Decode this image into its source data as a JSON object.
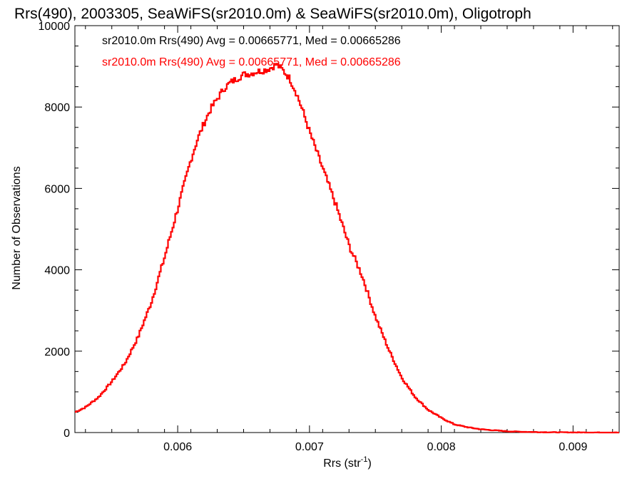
{
  "chart_data": {
    "type": "line",
    "title": "Rrs(490), 2003305, SeaWiFS(sr2010.0m) & SeaWiFS(sr2010.0m), Oligotroph",
    "xlabel": "Rrs (str",
    "xlabel_sup": "-1",
    "xlabel_tail": ")",
    "ylabel": "Number of Observations",
    "xlim": [
      0.00522,
      0.00935
    ],
    "ylim": [
      0,
      10000
    ],
    "xticks": [
      0.006,
      0.007,
      0.008,
      0.009
    ],
    "xtick_labels": [
      "0.006",
      "0.007",
      "0.008",
      "0.009"
    ],
    "yticks": [
      0,
      2000,
      4000,
      6000,
      8000,
      10000
    ],
    "ytick_labels": [
      "0",
      "2000",
      "4000",
      "6000",
      "8000",
      "10000"
    ],
    "grid": false,
    "legend_position": "top-left",
    "annotations": [
      {
        "text": "sr2010.0m Rrs(490) Avg = 0.00665771, Med = 0.00665286",
        "color": "#000000"
      },
      {
        "text": "sr2010.0m Rrs(490) Avg = 0.00665771, Med = 0.00665286",
        "color": "#ff0000"
      }
    ],
    "series": [
      {
        "color": "#ff0000",
        "x": [
          0.00522,
          0.0053,
          0.0054,
          0.0055,
          0.0056,
          0.0057,
          0.0058,
          0.0059,
          0.006,
          0.0061,
          0.00615,
          0.0062,
          0.00625,
          0.0063,
          0.00635,
          0.0064,
          0.00645,
          0.0065,
          0.00655,
          0.0066,
          0.00665,
          0.0067,
          0.00675,
          0.0068,
          0.00685,
          0.0069,
          0.00695,
          0.007,
          0.00705,
          0.0071,
          0.00715,
          0.0072,
          0.00725,
          0.0073,
          0.0074,
          0.0075,
          0.0076,
          0.0077,
          0.0078,
          0.0079,
          0.008,
          0.0081,
          0.0082,
          0.0083,
          0.0084,
          0.0085,
          0.0086,
          0.0087,
          0.0088,
          0.0089,
          0.009,
          0.0091,
          0.0092,
          0.00935
        ],
        "y": [
          500,
          620,
          870,
          1250,
          1700,
          2350,
          3200,
          4300,
          5500,
          6700,
          7200,
          7600,
          7950,
          8200,
          8450,
          8600,
          8700,
          8800,
          8820,
          8870,
          8900,
          8950,
          9050,
          8900,
          8700,
          8350,
          7900,
          7400,
          6950,
          6500,
          6050,
          5600,
          5100,
          4600,
          3850,
          2850,
          2050,
          1350,
          880,
          560,
          360,
          200,
          130,
          80,
          55,
          30,
          20,
          13,
          8,
          5,
          3,
          2,
          1,
          0
        ]
      }
    ]
  }
}
